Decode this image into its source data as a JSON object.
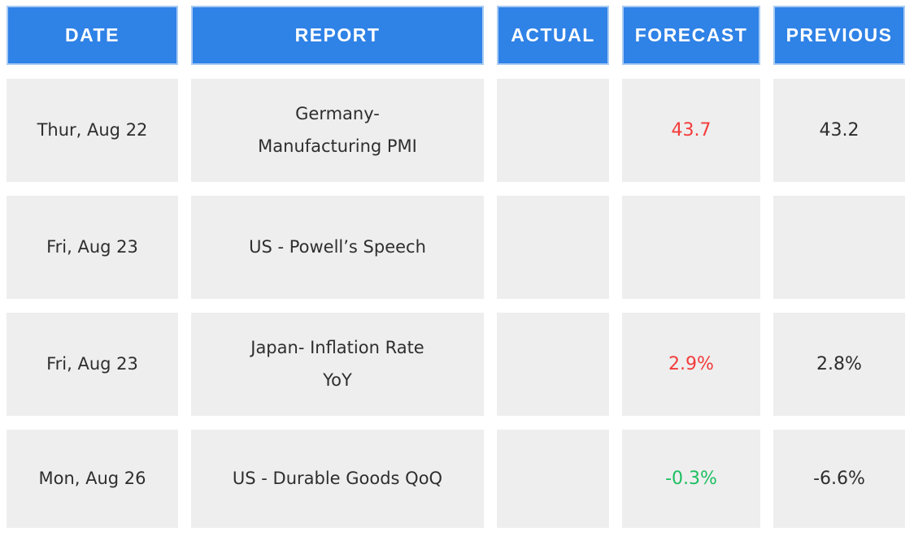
{
  "colors": {
    "header_bg": "#2f82e6",
    "header_border": "#a9cbf2",
    "header_text": "#ffffff",
    "cell_bg": "#eeeeee",
    "body_text": "#2e2e2e",
    "forecast_red": "#f43b3b",
    "forecast_green": "#1dbf61"
  },
  "chart_data": {
    "type": "table",
    "columns": [
      "DATE",
      "REPORT",
      "ACTUAL",
      "FORECAST",
      "PREVIOUS"
    ],
    "rows": [
      {
        "date": "Thur, Aug 22",
        "report": "Germany-\nManufacturing PMI",
        "actual": "",
        "forecast": "43.7",
        "forecast_color": "red",
        "previous": "43.2"
      },
      {
        "date": "Fri, Aug 23",
        "report": "US - Powell’s Speech",
        "actual": "",
        "forecast": "",
        "forecast_color": "",
        "previous": ""
      },
      {
        "date": "Fri, Aug 23",
        "report": "Japan- Inflation Rate\nYoY",
        "actual": "",
        "forecast": "2.9%",
        "forecast_color": "red",
        "previous": "2.8%"
      },
      {
        "date": "Mon, Aug 26",
        "report": "US - Durable Goods QoQ",
        "actual": "",
        "forecast": "-0.3%",
        "forecast_color": "green",
        "previous": "-6.6%"
      }
    ]
  }
}
